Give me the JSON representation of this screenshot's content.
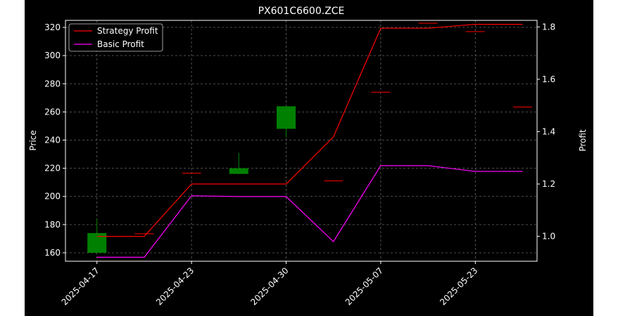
{
  "chart_data": {
    "type": "line",
    "title": "PX601C6600.ZCE",
    "ylabel_left": "Price",
    "ylabel_right": "Profit",
    "xlabel": "",
    "x_tick_labels": [
      "2025-04-17",
      "2025-04-23",
      "2025-04-30",
      "2025-05-07",
      "2025-05-23"
    ],
    "y_left_ticks": [
      160,
      180,
      200,
      220,
      240,
      260,
      280,
      300,
      320
    ],
    "y_right_ticks": [
      1.0,
      1.2,
      1.4,
      1.6,
      1.8
    ],
    "y_left_lim": [
      154,
      325
    ],
    "y_right_lim": [
      0.905,
      1.825
    ],
    "grid": true,
    "legend_position": "top-left",
    "candles": [
      {
        "x": 0,
        "open": 160,
        "close": 174,
        "high": 184,
        "low": 160,
        "color": "#008000"
      },
      {
        "x": 1,
        "open": 173.5,
        "close": 173.5,
        "high": 173.5,
        "low": 173.5,
        "color": "#ff0000"
      },
      {
        "x": 2,
        "open": 216.5,
        "close": 216.5,
        "high": 216.5,
        "low": 216.5,
        "color": "#ff0000"
      },
      {
        "x": 3,
        "open": 216,
        "close": 220,
        "high": 231,
        "low": 216,
        "color": "#008000"
      },
      {
        "x": 4,
        "open": 248,
        "close": 264,
        "high": 264,
        "low": 242,
        "color": "#008000"
      },
      {
        "x": 5,
        "open": 211,
        "close": 211,
        "high": 211,
        "low": 211,
        "color": "#ff0000"
      },
      {
        "x": 6,
        "open": 274,
        "close": 274,
        "high": 274,
        "low": 274,
        "color": "#ff0000"
      },
      {
        "x": 7,
        "open": 323,
        "close": 323,
        "high": 323,
        "low": 323,
        "color": "#ff0000"
      },
      {
        "x": 8,
        "open": 317,
        "close": 317,
        "high": 317,
        "low": 317,
        "color": "#ff0000"
      },
      {
        "x": 9,
        "open": 263.5,
        "close": 263.5,
        "high": 263.5,
        "low": 263.5,
        "color": "#ff0000"
      }
    ],
    "series": [
      {
        "name": "Strategy Profit",
        "color": "#ff0000",
        "x": [
          0,
          1,
          2,
          3,
          4,
          5,
          6,
          7,
          8,
          9
        ],
        "values": [
          1.0,
          1.0,
          1.2,
          1.2,
          1.2,
          1.38,
          1.795,
          1.795,
          1.81,
          1.81
        ]
      },
      {
        "name": "Basic Profit",
        "color": "#ff00ff",
        "x": [
          0,
          1,
          2,
          3,
          4,
          5,
          6,
          7,
          8,
          9
        ],
        "values": [
          0.92,
          0.92,
          1.155,
          1.152,
          1.152,
          0.98,
          1.27,
          1.27,
          1.248,
          1.248
        ]
      }
    ],
    "x_tick_positions": [
      0,
      2,
      4,
      6,
      8
    ]
  }
}
